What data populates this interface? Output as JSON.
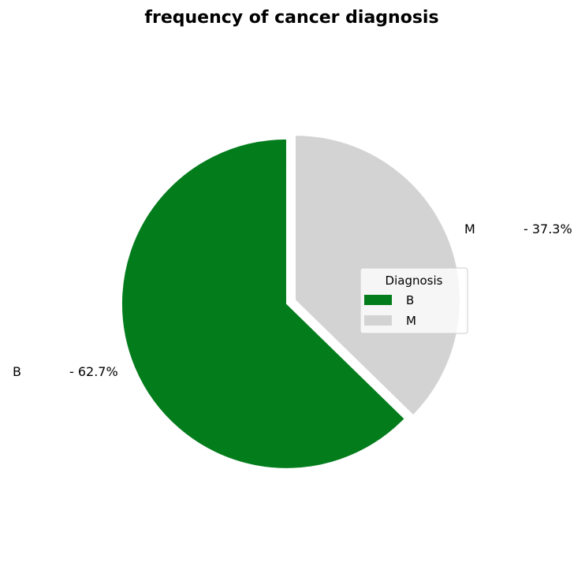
{
  "chart_data": {
    "type": "pie",
    "title": "frequency of cancer diagnosis",
    "categories": [
      "B",
      "M"
    ],
    "values": [
      62.7,
      37.3
    ],
    "labels": [
      {
        "category": "B",
        "pct": "- 62.7%"
      },
      {
        "category": "M",
        "pct": "- 37.3%"
      }
    ],
    "colors": [
      "#037c1b",
      "#d3d3d3"
    ],
    "exploded": [
      "B",
      "M"
    ],
    "legend": {
      "title": "Diagnosis",
      "entries": [
        "B",
        "M"
      ],
      "placement": "right"
    }
  }
}
